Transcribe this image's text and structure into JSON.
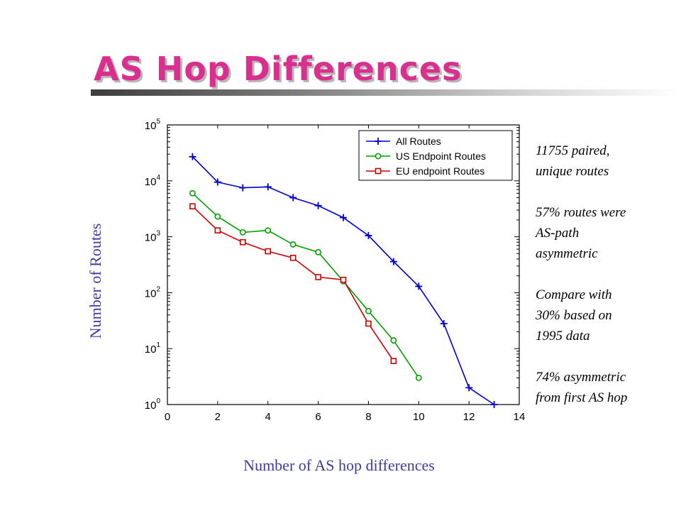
{
  "slide": {
    "title": "AS Hop Differences",
    "notes": [
      [
        "11755 paired,",
        "unique routes"
      ],
      [
        "57% routes were",
        "AS-path",
        "asymmetric"
      ],
      [
        "Compare with",
        "30% based on",
        "1995 data"
      ],
      [
        "74% asymmetric",
        "from first AS hop"
      ]
    ]
  },
  "chart_data": {
    "type": "line",
    "xlabel": "Number of AS hop differences",
    "ylabel": "Number of Routes",
    "xlim": [
      0,
      14
    ],
    "ylim": [
      1,
      100000
    ],
    "yscale": "log",
    "xticks": [
      0,
      2,
      4,
      6,
      8,
      10,
      12,
      14
    ],
    "yticks": [
      {
        "base": "10",
        "exp": "0",
        "value": 1
      },
      {
        "base": "10",
        "exp": "1",
        "value": 10
      },
      {
        "base": "10",
        "exp": "2",
        "value": 100
      },
      {
        "base": "10",
        "exp": "3",
        "value": 1000
      },
      {
        "base": "10",
        "exp": "4",
        "value": 10000
      },
      {
        "base": "10",
        "exp": "5",
        "value": 100000
      }
    ],
    "grid": false,
    "legend_position": "top-right",
    "series": [
      {
        "name": "All Routes",
        "color": "#0000cc",
        "marker": "plus",
        "x": [
          1,
          2,
          3,
          4,
          5,
          6,
          7,
          8,
          9,
          10,
          11,
          12,
          13
        ],
        "values": [
          27000,
          9500,
          7500,
          7800,
          5000,
          3600,
          2200,
          1050,
          360,
          130,
          28,
          2,
          1
        ]
      },
      {
        "name": "US Endpoint Routes",
        "color": "#00a000",
        "marker": "circle",
        "x": [
          1,
          2,
          3,
          4,
          5,
          6,
          7,
          8,
          9,
          10
        ],
        "values": [
          6000,
          2300,
          1200,
          1300,
          730,
          530,
          160,
          47,
          14,
          3
        ]
      },
      {
        "name": "EU endpoint Routes",
        "color": "#cc0000",
        "marker": "square",
        "x": [
          1,
          2,
          3,
          4,
          5,
          6,
          7,
          8,
          9
        ],
        "values": [
          3500,
          1300,
          800,
          550,
          420,
          190,
          170,
          28,
          6
        ]
      }
    ]
  }
}
